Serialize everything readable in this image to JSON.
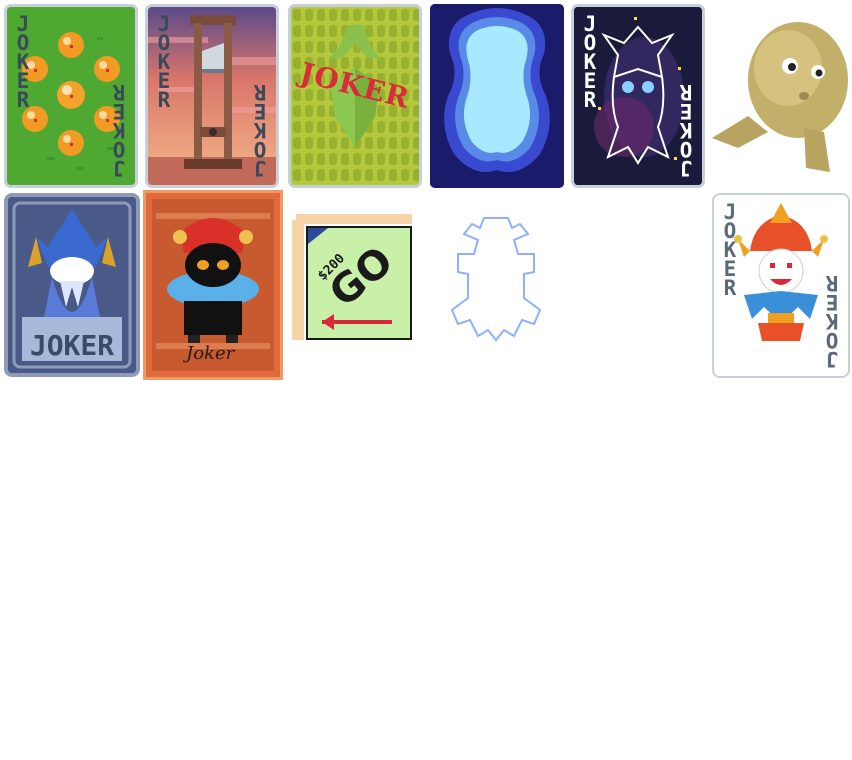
{
  "cards": {
    "dragon": {
      "corner": "JOKER",
      "colors": {
        "bg": "#4ea832",
        "border": "#c7cfd9"
      }
    },
    "guillotine": {
      "corner": "JOKER",
      "colors": {
        "sky": "#d9756a",
        "border": "#c7cfd9"
      }
    },
    "stamp": {
      "label": "JOKER",
      "colors": {
        "bg": "#b4c83c",
        "stamp": "#d92b3a"
      }
    },
    "aura": {
      "colors": {
        "outer": "#1b1b6b",
        "inner": "#a9e9ff"
      }
    },
    "cosmic": {
      "corner": "JOKER",
      "colors": {
        "bg": "#1a1a3a",
        "accent": "#ffd84a"
      }
    },
    "ghost": {
      "label": "JOKER",
      "colors": {
        "bg": "#4a5a88",
        "frame": "#8e9bb7"
      }
    },
    "plush": {
      "caption": "Joker",
      "colors": {
        "bg": "#e06a3a",
        "frame": "#f09866"
      }
    },
    "go": {
      "amount": "$200",
      "label": "GO",
      "colors": {
        "bg": "#c8f0a8",
        "arrow": "#d9283a"
      }
    },
    "outline": {
      "colors": {
        "stroke": "#8fb0ff"
      }
    },
    "classic": {
      "corner": "JOKER",
      "colors": {
        "hat": "#e8502a",
        "collar": "#3a8fd9"
      }
    }
  }
}
